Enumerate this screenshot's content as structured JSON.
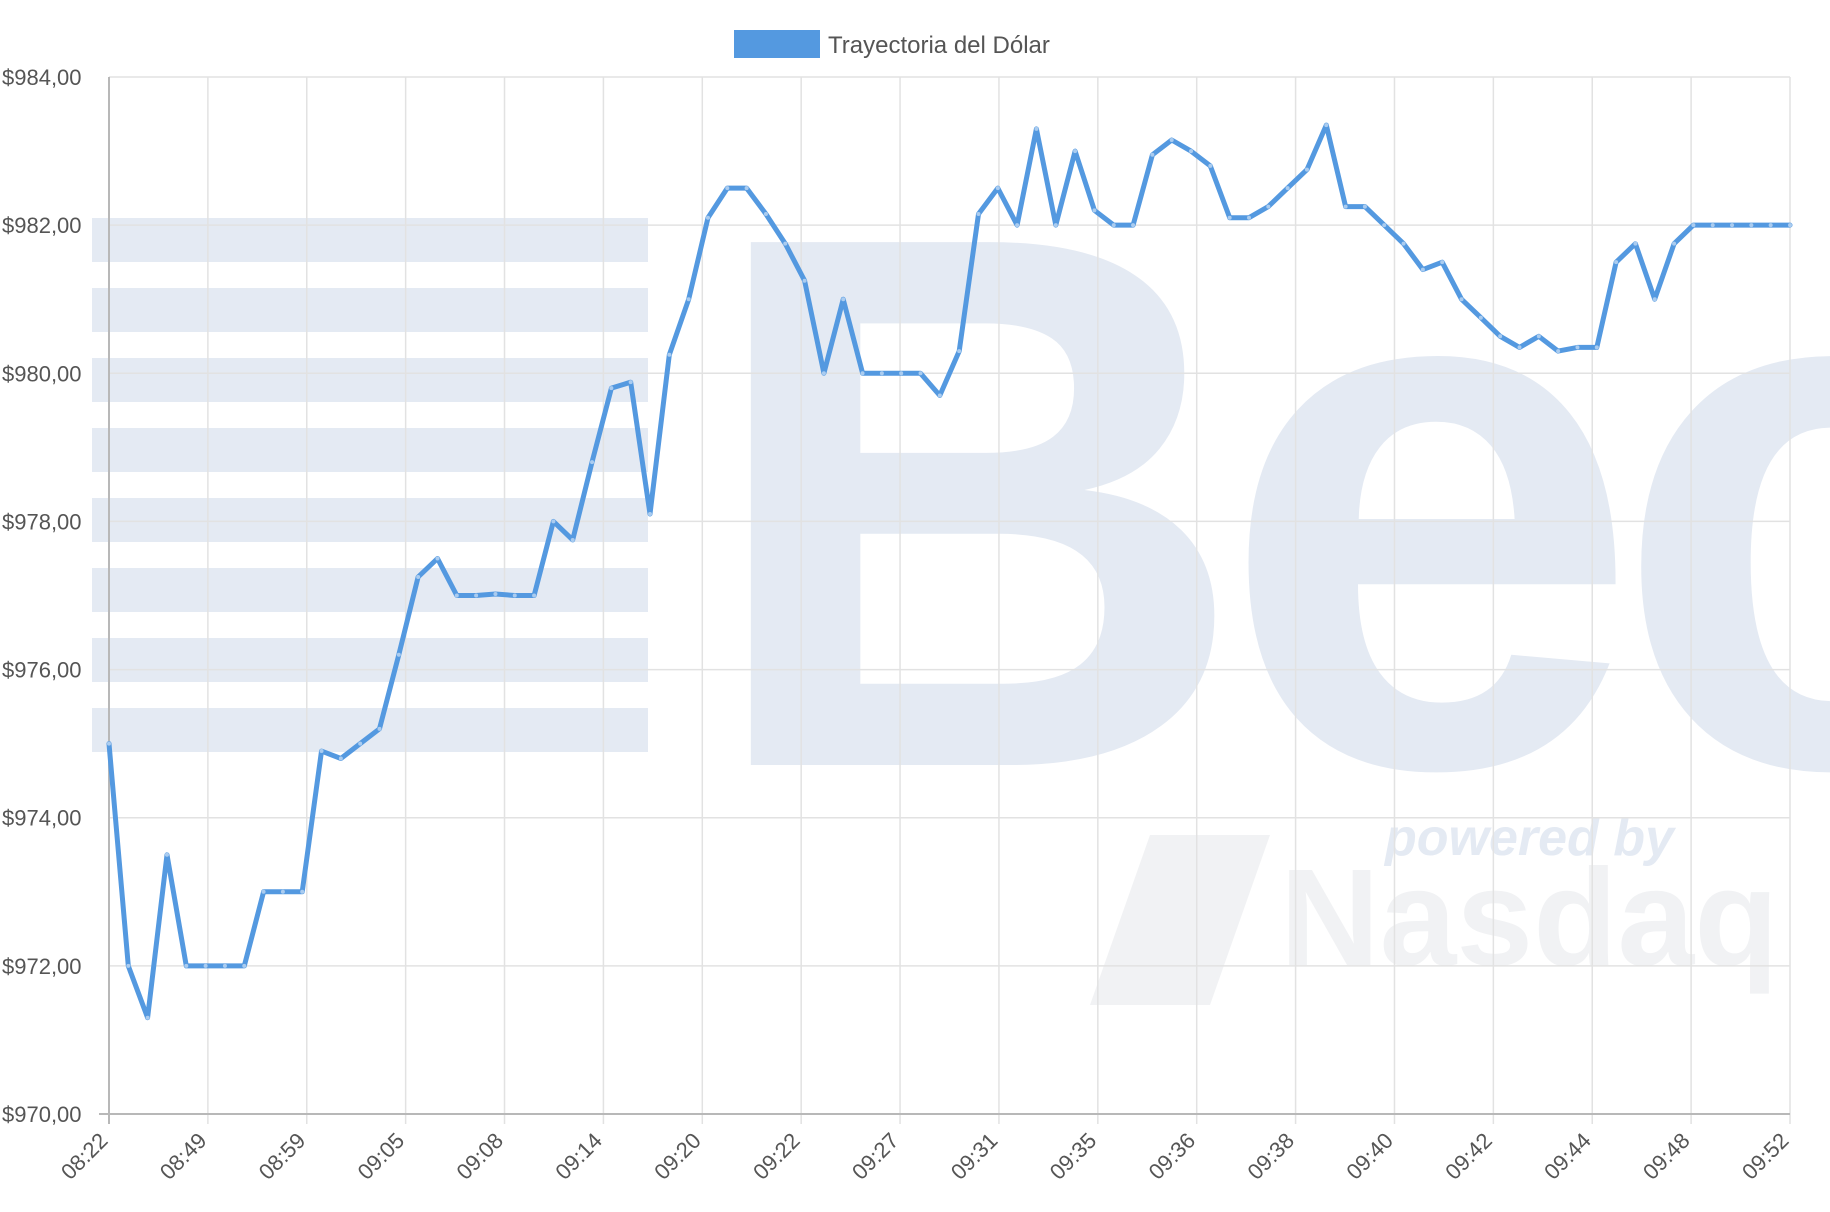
{
  "colors": {
    "series": "#5499e0",
    "grid": "#e2e2e2",
    "axis": "#b8b8b8",
    "watermark": "#e4eaf3",
    "watermark_light": "#f1f2f4"
  },
  "watermark": {
    "brand": "Bec",
    "tagline": "powered by",
    "partner": "Nasdaq"
  },
  "chart_data": {
    "type": "line",
    "title": "",
    "xlabel": "",
    "ylabel": "",
    "legend_position": "top-center",
    "grid": true,
    "ylim": [
      970,
      984
    ],
    "y_ticks": [
      "$970,00",
      "$972,00",
      "$974,00",
      "$976,00",
      "$978,00",
      "$980,00",
      "$982,00",
      "$984,00"
    ],
    "x_tick_labels": [
      "08:22",
      "08:49",
      "08:59",
      "09:05",
      "09:08",
      "09:14",
      "09:20",
      "09:22",
      "09:27",
      "09:31",
      "09:35",
      "09:36",
      "09:38",
      "09:40",
      "09:42",
      "09:44",
      "09:48",
      "09:52"
    ],
    "series": [
      {
        "name": "Trayectoria del Dólar",
        "values": [
          975.0,
          972.0,
          971.3,
          973.5,
          972.0,
          972.0,
          972.0,
          972.0,
          973.0,
          973.0,
          973.0,
          974.9,
          974.8,
          975.0,
          975.2,
          976.2,
          977.25,
          977.5,
          977.0,
          977.0,
          977.02,
          977.0,
          977.0,
          978.0,
          977.75,
          978.8,
          979.8,
          979.88,
          978.1,
          980.25,
          981.0,
          982.1,
          982.5,
          982.5,
          982.15,
          981.75,
          981.25,
          980.0,
          981.0,
          980.0,
          980.0,
          980.0,
          980.0,
          979.7,
          980.3,
          982.15,
          982.5,
          982.0,
          983.3,
          982.0,
          983.0,
          982.2,
          982.0,
          982.0,
          982.95,
          983.15,
          983.0,
          982.8,
          982.1,
          982.1,
          982.25,
          982.5,
          982.75,
          983.35,
          982.25,
          982.25,
          982.0,
          981.75,
          981.4,
          981.5,
          981.0,
          980.75,
          980.5,
          980.35,
          980.5,
          980.3,
          980.35,
          980.35,
          981.5,
          981.75,
          981.0,
          981.75,
          982.0,
          982.0,
          982.0,
          982.0,
          982.0,
          982.0
        ]
      }
    ]
  }
}
